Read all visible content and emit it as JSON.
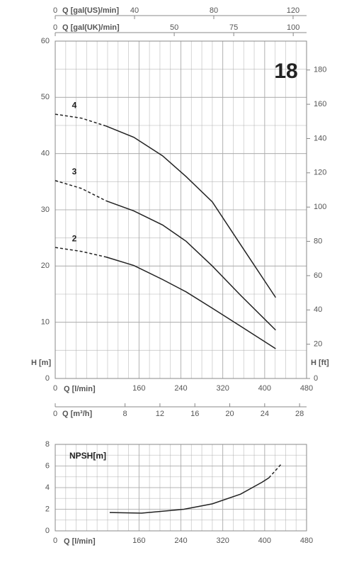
{
  "chart_data": [
    {
      "type": "line",
      "title": "18",
      "xlabel": "Q [l/min]",
      "ylabel": "H [m]",
      "y2label": "H [ft]",
      "xlim": [
        0,
        480
      ],
      "xticks": [
        0,
        160,
        240,
        320,
        400,
        480
      ],
      "ylim": [
        0,
        60
      ],
      "yticks": [
        0,
        10,
        20,
        30,
        40,
        50,
        60
      ],
      "y2lim": [
        0,
        196.85
      ],
      "y2ticks": [
        0,
        20,
        40,
        60,
        80,
        100,
        120,
        140,
        160,
        180
      ],
      "extra_x_axes": [
        {
          "label": "Q [gal(US)/min]",
          "lim": [
            0,
            126.8
          ],
          "ticks": [
            0,
            40,
            80,
            120
          ],
          "position": "top"
        },
        {
          "label": "Q [gal(UK)/min]",
          "lim": [
            0,
            105.6
          ],
          "ticks": [
            0,
            50,
            75,
            100
          ],
          "position": "top"
        },
        {
          "label": "Q [m³/h]",
          "lim": [
            0,
            28.8
          ],
          "ticks": [
            0,
            8,
            12,
            16,
            20,
            24,
            28
          ],
          "position": "bottom"
        }
      ],
      "grid": true,
      "series": [
        {
          "name": "4",
          "color": "#222222",
          "segments": [
            {
              "style": "dashed",
              "x": [
                0,
                50,
                97
              ],
              "values": [
                47.0,
                46.3,
                44.9
              ]
            },
            {
              "style": "solid",
              "x": [
                97,
                150,
                205,
                250,
                300,
                354,
                421
              ],
              "values": [
                44.9,
                42.9,
                39.6,
                35.9,
                31.4,
                23.8,
                14.4
              ]
            }
          ]
        },
        {
          "name": "3",
          "color": "#222222",
          "segments": [
            {
              "style": "dashed",
              "x": [
                0,
                50,
                97
              ],
              "values": [
                35.2,
                33.8,
                31.6
              ]
            },
            {
              "style": "solid",
              "x": [
                97,
                150,
                205,
                250,
                300,
                354,
                421
              ],
              "values": [
                31.6,
                29.8,
                27.3,
                24.4,
                20.0,
                14.8,
                8.6
              ]
            }
          ]
        },
        {
          "name": "2",
          "color": "#222222",
          "segments": [
            {
              "style": "dashed",
              "x": [
                0,
                50,
                97
              ],
              "values": [
                23.3,
                22.6,
                21.6
              ]
            },
            {
              "style": "solid",
              "x": [
                97,
                150,
                205,
                250,
                300,
                354,
                421
              ],
              "values": [
                21.6,
                20.1,
                17.6,
                15.4,
                12.5,
                9.3,
                5.3
              ]
            }
          ]
        }
      ]
    },
    {
      "type": "line",
      "title": "NPSH[m]",
      "xlabel": "Q [l/min]",
      "xlim": [
        0,
        480
      ],
      "xticks": [
        0,
        160,
        240,
        320,
        400,
        480
      ],
      "ylim": [
        0,
        8
      ],
      "yticks": [
        0,
        2,
        4,
        6,
        8
      ],
      "grid": true,
      "series": [
        {
          "color": "#222222",
          "segments": [
            {
              "style": "solid",
              "x": [
                104,
                165,
                246,
                300,
                354,
                395,
                408
              ],
              "values": [
                1.7,
                1.64,
                2.0,
                2.5,
                3.4,
                4.5,
                4.9
              ]
            },
            {
              "style": "dashed",
              "x": [
                408,
                432
              ],
              "values": [
                4.9,
                6.2
              ]
            }
          ]
        }
      ]
    }
  ]
}
